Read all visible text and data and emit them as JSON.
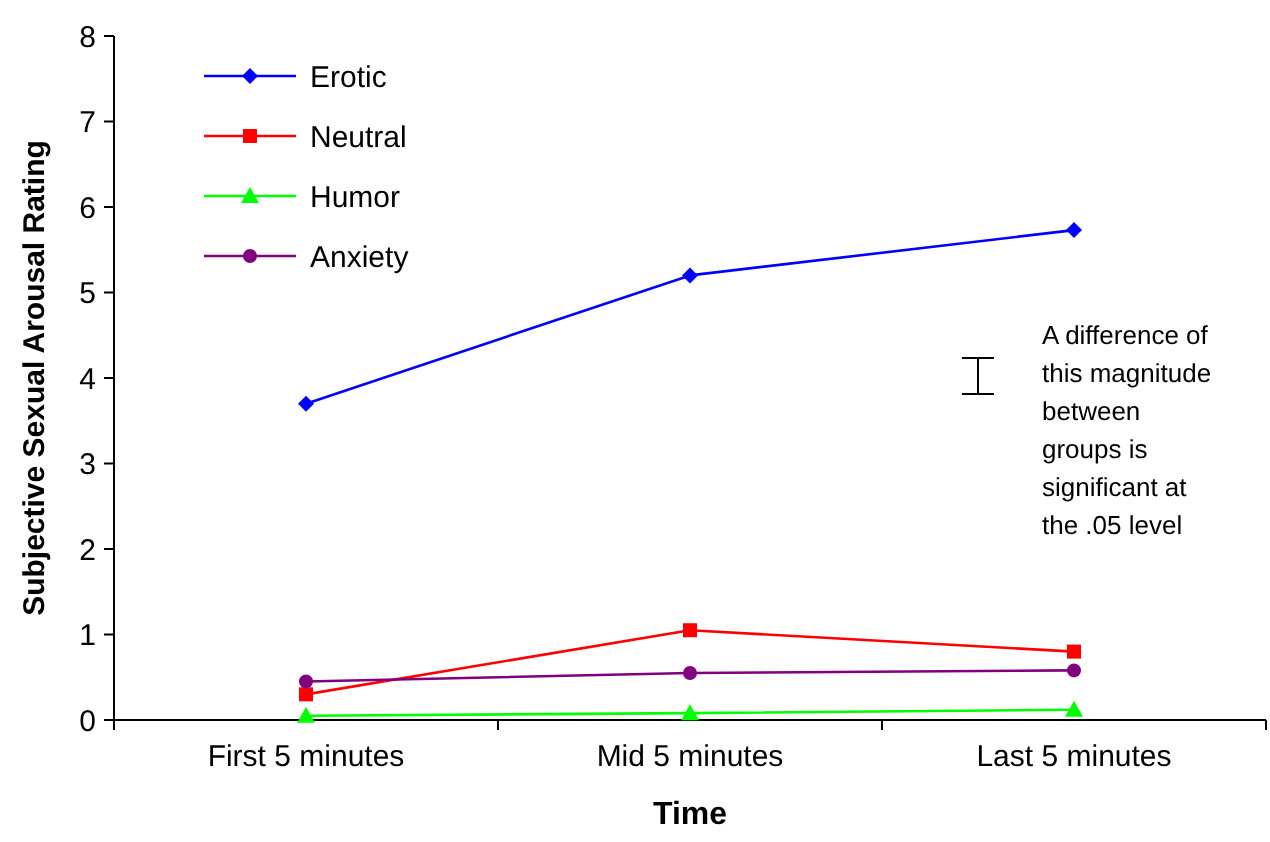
{
  "chart_data": {
    "type": "line",
    "xlabel": "Time",
    "ylabel": "Subjective Sexual Arousal Rating",
    "categories": [
      "First 5 minutes",
      "Mid 5 minutes",
      "Last 5 minutes"
    ],
    "ylim": [
      0,
      8
    ],
    "yticks": [
      0,
      1,
      2,
      3,
      4,
      5,
      6,
      7,
      8
    ],
    "grid": false,
    "legend": "top left",
    "series": [
      {
        "name": "Erotic",
        "color": "#0000ff",
        "marker": "diamond",
        "values": [
          3.7,
          5.2,
          5.73
        ]
      },
      {
        "name": "Neutral",
        "color": "#ff0000",
        "marker": "square",
        "values": [
          0.3,
          1.05,
          0.8
        ]
      },
      {
        "name": "Humor",
        "color": "#00ff00",
        "marker": "triangle",
        "values": [
          0.05,
          0.08,
          0.12
        ]
      },
      {
        "name": "Anxiety",
        "color": "#800080",
        "marker": "circle",
        "values": [
          0.45,
          0.55,
          0.58
        ]
      }
    ],
    "annotations": [
      "A difference of\nthis magnitude\nbetween\ngroups is\nsignificant at\nthe .05 level"
    ]
  }
}
